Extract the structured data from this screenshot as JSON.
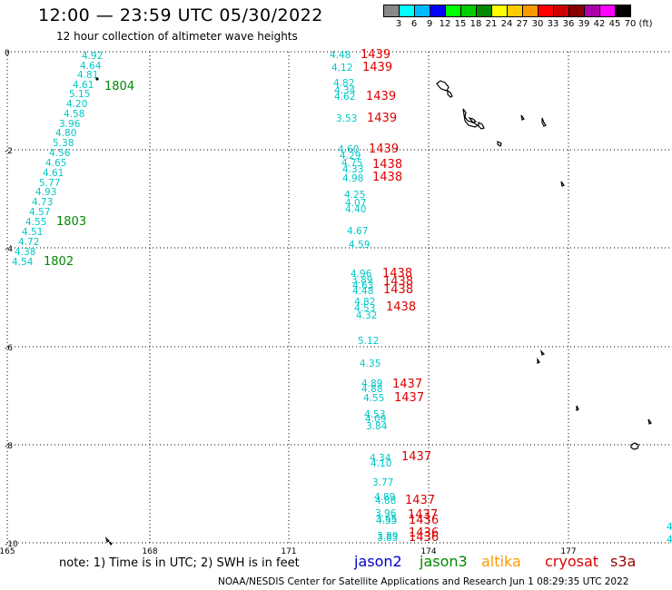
{
  "header": {
    "title": "12:00 — 23:59 UTC 05/30/2022",
    "subtitle": "12 hour collection of altimeter wave heights"
  },
  "colorbar": {
    "colors": [
      "#888888",
      "#00ffff",
      "#00b8ff",
      "#0000ff",
      "#00ff00",
      "#00cc00",
      "#008800",
      "#ffff00",
      "#ffcc00",
      "#ff9900",
      "#ff0000",
      "#cc0000",
      "#880000",
      "#aa00aa",
      "#ff00ff",
      "#000000"
    ],
    "labels": [
      "3",
      "6",
      "9",
      "12",
      "15",
      "18",
      "21",
      "24",
      "27",
      "30",
      "33",
      "36",
      "39",
      "42",
      "45",
      "70",
      "(ft)"
    ]
  },
  "axes": {
    "y_ticks": [
      "0",
      "-2",
      "-4",
      "-6",
      "-8",
      "-10"
    ],
    "x_ticks": [
      "165",
      "168",
      "171",
      "174",
      "177"
    ]
  },
  "footer": {
    "note": "note:  1) Time is in UTC;  2) SWH is in feet",
    "satellites": [
      {
        "name": "jason2",
        "color": "#0000cc"
      },
      {
        "name": "jason3",
        "color": "#008800"
      },
      {
        "name": "altika",
        "color": "#ff9900"
      },
      {
        "name": "cryosat",
        "color": "#dd0000"
      },
      {
        "name": "s3a",
        "color": "#990000"
      }
    ],
    "credit": "NOAA/NESDIS Center for Satellite Applications and Research    Jun  1 08:29:35 UTC 2022"
  },
  "tracks": {
    "jason3_west": {
      "color": "#00c8c8",
      "values": [
        "4.92",
        "4.64",
        "4.81",
        "4.61",
        "5.15",
        "4.20",
        "4.58",
        "3.96",
        "4.80",
        "5.38",
        "4.56",
        "4.65",
        "4.61",
        "5.77",
        "4.93",
        "4.73",
        "4.57",
        "4.55",
        "4.51",
        "4.72",
        "4.38",
        "4.54"
      ],
      "times": [
        {
          "label": "1804",
          "color": "#008800"
        },
        {
          "label": "1803",
          "color": "#008800"
        },
        {
          "label": "1802",
          "color": "#008800"
        }
      ]
    },
    "cryosat_east": {
      "color": "#00c8c8",
      "values": [
        "4.48",
        "4.12",
        "4.82",
        "4.34",
        "4.62",
        "3.53",
        "4.60",
        "4.29",
        "4.75",
        "4.33",
        "4.98",
        "4.25",
        "4.07",
        "4.40",
        "4.67",
        "4.59",
        "4.96",
        "3.89",
        "4.63",
        "4.48",
        "4.82",
        "4.53",
        "4.32",
        "5.12",
        "4.35",
        "4.89",
        "4.88",
        "4.55",
        "4.53",
        "4.09",
        "3.84",
        "4.34",
        "4.10",
        "3.77",
        "4.89",
        "4.88",
        "3.96",
        "3.65",
        "4.35",
        "3.89",
        "3.85"
      ],
      "times": [
        {
          "label": "1439"
        },
        {
          "label": "1439"
        },
        {
          "label": "1439"
        },
        {
          "label": "1439"
        },
        {
          "label": "1439"
        },
        {
          "label": "1438"
        },
        {
          "label": "1438"
        },
        {
          "label": "1438"
        },
        {
          "label": "1438"
        },
        {
          "label": "1438"
        },
        {
          "label": "1438"
        },
        {
          "label": "1437"
        },
        {
          "label": "1437"
        },
        {
          "label": "1437"
        },
        {
          "label": "1437"
        },
        {
          "label": "1437"
        },
        {
          "label": "1436"
        },
        {
          "label": "1436"
        },
        {
          "label": "1436"
        }
      ],
      "time_color": "#dd0000"
    },
    "edge_values": [
      "4.",
      "4."
    ]
  }
}
